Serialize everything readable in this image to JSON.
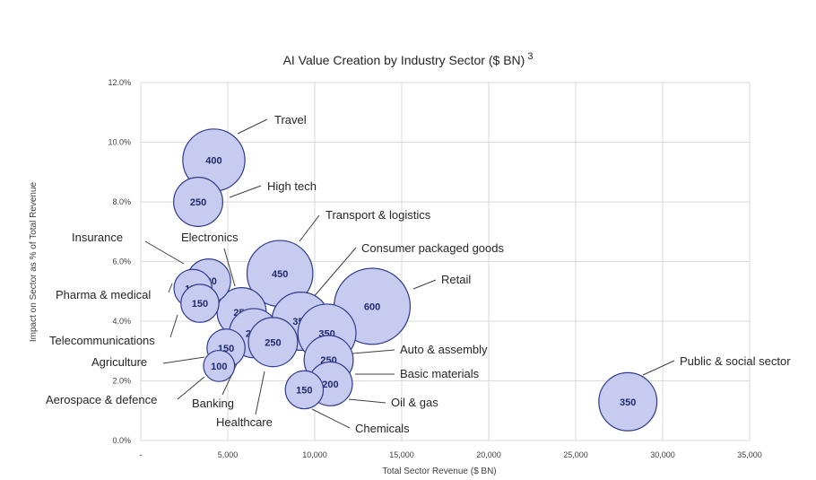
{
  "chart_data": {
    "type": "bubble",
    "title": "AI Value Creation by Industry Sector ($ BN)",
    "title_superscript": "3",
    "xlabel": "Total Sector Revenue ($ BN)",
    "ylabel": "Impact on Sector as % of Total Revenue",
    "xlim": [
      0,
      35000
    ],
    "ylim": [
      0,
      12
    ],
    "x_ticks": [
      "-",
      "5,000",
      "10,000",
      "15,000",
      "20,000",
      "25,000",
      "30,000",
      "35,000"
    ],
    "y_ticks": [
      "0.0%",
      "2.0%",
      "4.0%",
      "6.0%",
      "8.0%",
      "10.0%",
      "12.0%"
    ],
    "grid": true,
    "points": [
      {
        "name": "Travel",
        "x": 4200,
        "y": 9.4,
        "size": 400
      },
      {
        "name": "High tech",
        "x": 3300,
        "y": 8.0,
        "size": 250
      },
      {
        "name": "Transport & logistics",
        "x": 8000,
        "y": 5.6,
        "size": 450
      },
      {
        "name": "Consumer packaged goods",
        "x": 9200,
        "y": 4.0,
        "size": 350
      },
      {
        "name": "Retail",
        "x": 13300,
        "y": 4.5,
        "size": 600
      },
      {
        "name": "Insurance",
        "x": 3900,
        "y": 5.35,
        "size": 200
      },
      {
        "name": "Pharma & medical",
        "x": 3000,
        "y": 5.1,
        "size": 150
      },
      {
        "name": "Telecommunications",
        "x": 3400,
        "y": 4.6,
        "size": 150
      },
      {
        "name": "Electronics",
        "x": 5800,
        "y": 4.3,
        "size": 250
      },
      {
        "name": "Agriculture",
        "x": 4900,
        "y": 3.1,
        "size": 150
      },
      {
        "name": "Aerospace & defence",
        "x": 4500,
        "y": 2.5,
        "size": 100
      },
      {
        "name": "Banking",
        "x": 6500,
        "y": 3.6,
        "size": 250
      },
      {
        "name": "Healthcare",
        "x": 7600,
        "y": 3.3,
        "size": 250
      },
      {
        "name": "Auto & assembly",
        "x": 10700,
        "y": 3.6,
        "size": 350
      },
      {
        "name": "Basic materials",
        "x": 10800,
        "y": 2.7,
        "size": 250
      },
      {
        "name": "Oil & gas",
        "x": 10900,
        "y": 1.9,
        "size": 200
      },
      {
        "name": "Chemicals",
        "x": 9400,
        "y": 1.7,
        "size": 150
      },
      {
        "name": "Public & social sector",
        "x": 28000,
        "y": 1.3,
        "size": 350
      }
    ],
    "annotations": [
      {
        "text": "Travel",
        "pt": "Travel",
        "side": "right"
      },
      {
        "text": "High tech",
        "pt": "High tech",
        "side": "right"
      },
      {
        "text": "Transport & logistics",
        "pt": "Transport & logistics",
        "side": "right"
      },
      {
        "text": "Consumer packaged goods",
        "pt": "Consumer packaged goods",
        "side": "right"
      },
      {
        "text": "Retail",
        "pt": "Retail",
        "side": "right"
      },
      {
        "text": "Insurance",
        "pt": "Insurance",
        "side": "left"
      },
      {
        "text": "Electronics",
        "pt": "Electronics",
        "side": "left"
      },
      {
        "text": "Pharma & medical",
        "pt": "Pharma & medical",
        "side": "left"
      },
      {
        "text": "Telecommunications",
        "pt": "Telecommunications",
        "side": "left"
      },
      {
        "text": "Agriculture",
        "pt": "Agriculture",
        "side": "left"
      },
      {
        "text": "Aerospace & defence",
        "pt": "Aerospace & defence",
        "side": "left"
      },
      {
        "text": "Banking",
        "pt": "Banking",
        "side": "left"
      },
      {
        "text": "Healthcare",
        "pt": "Healthcare",
        "side": "left"
      },
      {
        "text": "Auto & assembly",
        "pt": "Auto & assembly",
        "side": "right"
      },
      {
        "text": "Basic materials",
        "pt": "Basic materials",
        "side": "right"
      },
      {
        "text": "Oil & gas",
        "pt": "Oil & gas",
        "side": "right"
      },
      {
        "text": "Chemicals",
        "pt": "Chemicals",
        "side": "right"
      },
      {
        "text": "Public & social sector",
        "pt": "Public & social sector",
        "side": "right"
      }
    ],
    "colors": {
      "bubble_fill": "#c8cbf0",
      "bubble_stroke": "#2e3a8c",
      "label": "#1f2a6b"
    }
  }
}
